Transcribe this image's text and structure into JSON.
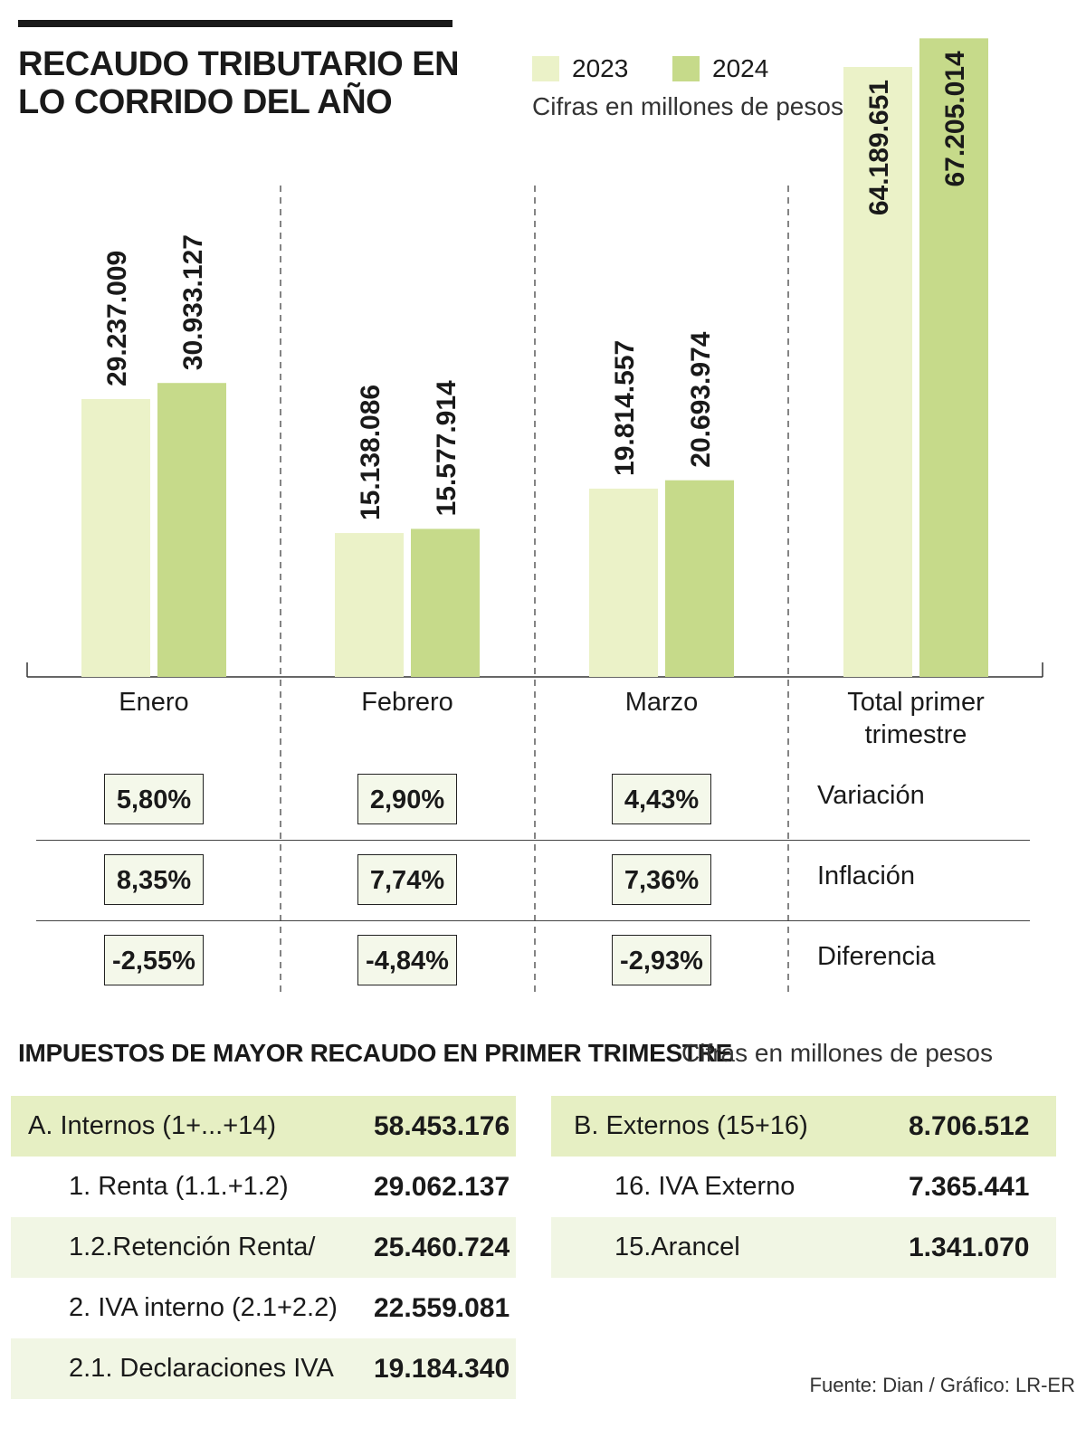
{
  "title_line1": "RECAUDO TRIBUTARIO EN",
  "title_line2": "LO CORRIDO DEL AÑO",
  "units_text": "Cifras en millones de pesos",
  "colors": {
    "y2023": "#ebf2c8",
    "y2024": "#c6da8a",
    "highlight": "#e6efc3",
    "stripe": "#f1f6e4",
    "box": "#f4f8ea"
  },
  "chart_data": {
    "type": "bar",
    "categories": [
      "Enero",
      "Febrero",
      "Marzo",
      "Total primer trimestre"
    ],
    "category_lines": [
      [
        "Enero"
      ],
      [
        "Febrero"
      ],
      [
        "Marzo"
      ],
      [
        "Total primer",
        "trimestre"
      ]
    ],
    "series": [
      {
        "name": "2023",
        "values": [
          29237009,
          15138086,
          19814557,
          64189651
        ],
        "labels": [
          "29.237.009",
          "15.138.086",
          "19.814.557",
          "64.189.651"
        ]
      },
      {
        "name": "2024",
        "values": [
          30933127,
          15577914,
          20693974,
          67205014
        ],
        "labels": [
          "30.933.127",
          "15.577.914",
          "20.693.974",
          "67.205.014"
        ]
      }
    ],
    "units": "Cifras en millones de pesos",
    "grid": false,
    "legend_position": "top"
  },
  "stats": {
    "rows": [
      {
        "label": "Variación",
        "values": [
          "5,80%",
          "2,90%",
          "4,43%"
        ]
      },
      {
        "label": "Inflación",
        "values": [
          "8,35%",
          "7,74%",
          "7,36%"
        ]
      },
      {
        "label": "Diferencia",
        "values": [
          "-2,55%",
          "-4,84%",
          "-2,93%"
        ]
      }
    ]
  },
  "taxes": {
    "title": "IMPUESTOS DE MAYOR RECAUDO EN PRIMER TRIMESTRE",
    "units": "Cifras en millones de pesos",
    "left": [
      {
        "name": "A. Internos (1+...+14)",
        "value": "58.453.176"
      },
      {
        "name": "1. Renta (1.1.+1.2)",
        "value": "29.062.137"
      },
      {
        "name": "1.2.Retención Renta/",
        "value": "25.460.724"
      },
      {
        "name": "2. IVA interno (2.1+2.2)",
        "value": "22.559.081"
      },
      {
        "name": "2.1. Declaraciones IVA",
        "value": "19.184.340"
      }
    ],
    "right": [
      {
        "name": "B. Externos (15+16)",
        "value": "8.706.512"
      },
      {
        "name": "16. IVA Externo",
        "value": "7.365.441"
      },
      {
        "name": "15.Arancel",
        "value": "1.341.070"
      }
    ]
  },
  "source": "Fuente: Dian / Gráfico: LR-ER"
}
